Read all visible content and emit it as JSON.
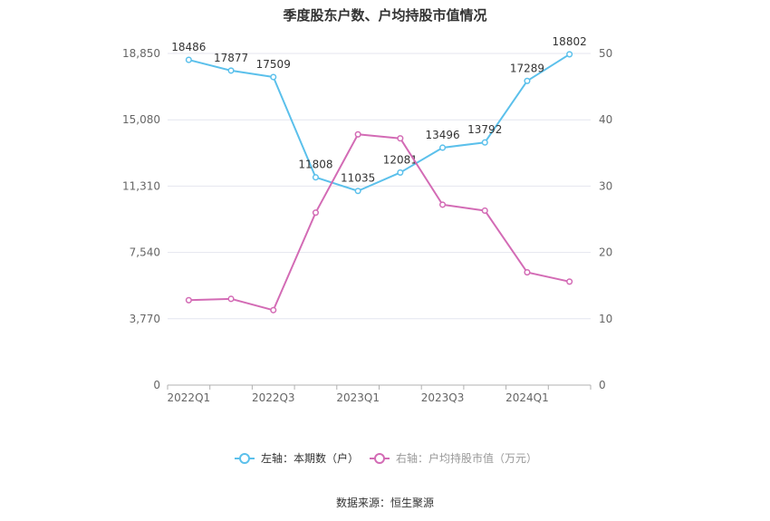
{
  "chart_data": {
    "type": "line",
    "title": "季度股东户数、户均持股市值情况",
    "categories": [
      "2022Q1",
      "2022Q2",
      "2022Q3",
      "2022Q4",
      "2023Q1",
      "2023Q2",
      "2023Q3",
      "2023Q4",
      "2024Q1",
      "2024Q2"
    ],
    "x_tick_labels": [
      "2022Q1",
      "",
      "2022Q3",
      "",
      "2023Q1",
      "",
      "2023Q3",
      "",
      "2024Q1",
      ""
    ],
    "left_axis": {
      "ylim": [
        0,
        18850
      ],
      "ticks": [
        "0",
        "3,770",
        "7,540",
        "11,310",
        "15,080",
        "18,850"
      ]
    },
    "right_axis": {
      "ylim": [
        0,
        50
      ],
      "ticks": [
        "0",
        "10",
        "20",
        "30",
        "40",
        "50"
      ]
    },
    "series": [
      {
        "name": "左轴：本期数（户）",
        "axis": "left",
        "color": "#5bc0eb",
        "values": [
          18486,
          17877,
          17509,
          11808,
          11035,
          12081,
          13496,
          13792,
          17289,
          18802
        ],
        "labels": [
          "18486",
          "17877",
          "17509",
          "11808",
          "11035",
          "12081",
          "13496",
          "13792",
          "17289",
          "18802"
        ]
      },
      {
        "name": "右轴：户均持股市值（万元）",
        "axis": "right",
        "color": "#d36bb5",
        "values": [
          12.8,
          13.0,
          11.3,
          26.0,
          37.8,
          37.2,
          27.2,
          26.3,
          17.0,
          15.6
        ]
      }
    ],
    "grid": true,
    "legend_position": "bottom"
  },
  "source_note": "数据来源：恒生聚源"
}
